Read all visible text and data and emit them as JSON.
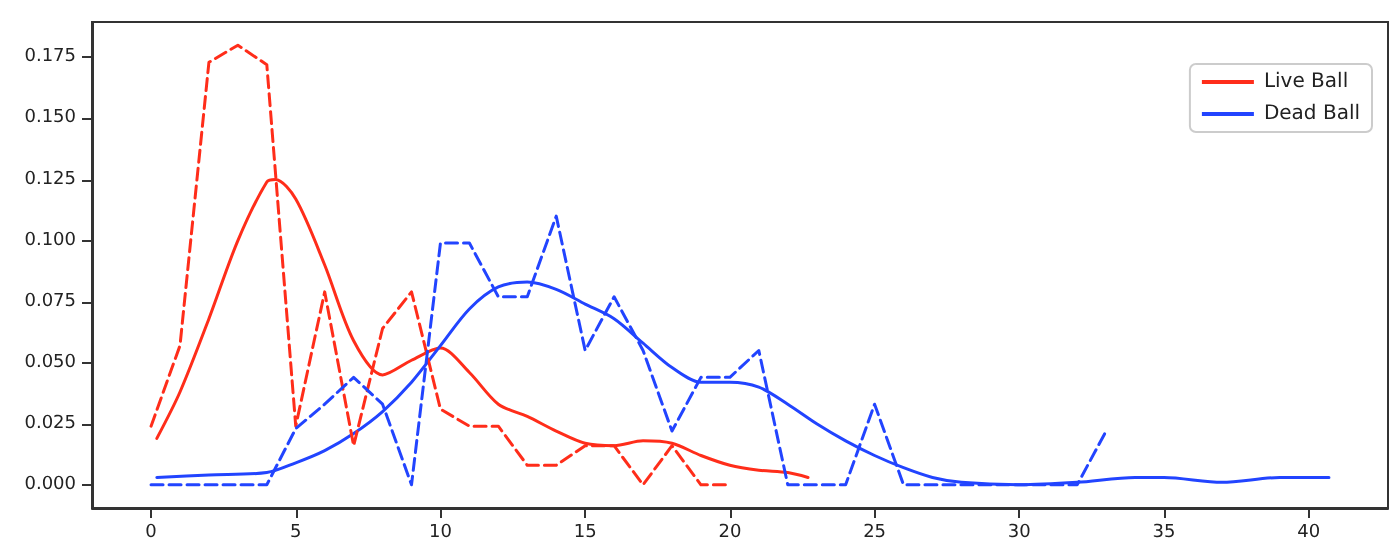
{
  "chart_data": {
    "type": "line",
    "xlim": [
      -2.04,
      42.74
    ],
    "ylim": [
      -0.0095,
      0.1895
    ],
    "xticks": [
      0,
      5,
      10,
      15,
      20,
      25,
      30,
      35,
      40
    ],
    "yticks": [
      {
        "value": 0,
        "label": "0.000"
      },
      {
        "value": 0.025,
        "label": "0.025"
      },
      {
        "value": 0.05,
        "label": "0.050"
      },
      {
        "value": 0.075,
        "label": "0.075"
      },
      {
        "value": 0.1,
        "label": "0.100"
      },
      {
        "value": 0.125,
        "label": "0.125"
      },
      {
        "value": 0.15,
        "label": "0.150"
      },
      {
        "value": 0.175,
        "label": "0.175"
      }
    ],
    "grid": false,
    "legend": "top right",
    "marker": "none",
    "series": [
      {
        "name": "Live Ball",
        "color": "#ff2d1a",
        "line_style": "solid",
        "x": [
          0.2,
          1,
          2,
          3,
          4,
          4.3,
          5,
          6,
          7,
          8,
          9,
          10,
          11,
          12,
          13,
          14,
          15,
          16,
          17,
          18,
          19,
          20,
          21,
          22,
          22.7
        ],
        "values": [
          0.019,
          0.038,
          0.068,
          0.1,
          0.124,
          0.125,
          0.117,
          0.09,
          0.059,
          0.045,
          0.051,
          0.056,
          0.046,
          0.033,
          0.028,
          0.022,
          0.017,
          0.016,
          0.018,
          0.017,
          0.012,
          0.008,
          0.006,
          0.005,
          0.003
        ]
      },
      {
        "name": "Dead Ball",
        "color": "#2244ff",
        "line_style": "solid",
        "x": [
          0.2,
          2,
          4,
          5,
          6,
          7,
          8,
          9,
          10,
          11,
          12,
          13,
          14,
          15,
          16,
          17,
          18,
          19,
          20,
          21,
          22,
          23,
          24,
          25,
          26,
          27,
          28,
          30,
          32,
          34,
          35,
          37,
          39,
          40.7
        ],
        "values": [
          0.003,
          0.004,
          0.005,
          0.009,
          0.014,
          0.021,
          0.03,
          0.042,
          0.057,
          0.072,
          0.081,
          0.083,
          0.08,
          0.074,
          0.068,
          0.058,
          0.048,
          0.042,
          0.042,
          0.04,
          0.033,
          0.025,
          0.018,
          0.012,
          0.007,
          0.003,
          0.001,
          0,
          0.001,
          0.003,
          0.003,
          0.001,
          0.003,
          0.003
        ]
      },
      {
        "color": "#ff2d1a",
        "line_style": "dashed",
        "x": [
          0,
          1,
          2,
          3,
          4,
          5,
          6,
          7,
          8,
          9,
          10,
          11,
          12,
          13,
          14,
          15,
          16,
          17,
          18,
          19,
          20
        ],
        "values": [
          0.024,
          0.057,
          0.173,
          0.18,
          0.172,
          0.024,
          0.079,
          0.016,
          0.064,
          0.079,
          0.031,
          0.024,
          0.024,
          0.008,
          0.008,
          0.016,
          0.016,
          0,
          0.016,
          0,
          0
        ]
      },
      {
        "color": "#2244ff",
        "line_style": "dashed",
        "x": [
          0,
          1,
          2,
          3,
          4,
          5,
          6,
          7,
          8,
          9,
          10,
          11,
          12,
          13,
          14,
          15,
          16,
          17,
          18,
          19,
          20,
          21,
          22,
          23,
          24,
          25,
          26,
          27,
          28,
          29,
          30,
          31,
          32,
          33
        ],
        "values": [
          0,
          0,
          0,
          0,
          0,
          0.023,
          0.033,
          0.044,
          0.033,
          0,
          0.099,
          0.099,
          0.077,
          0.077,
          0.11,
          0.055,
          0.077,
          0.055,
          0.022,
          0.044,
          0.044,
          0.055,
          0,
          0,
          0,
          0.033,
          0,
          0,
          0,
          0,
          0,
          0,
          0,
          0.022
        ]
      }
    ]
  }
}
